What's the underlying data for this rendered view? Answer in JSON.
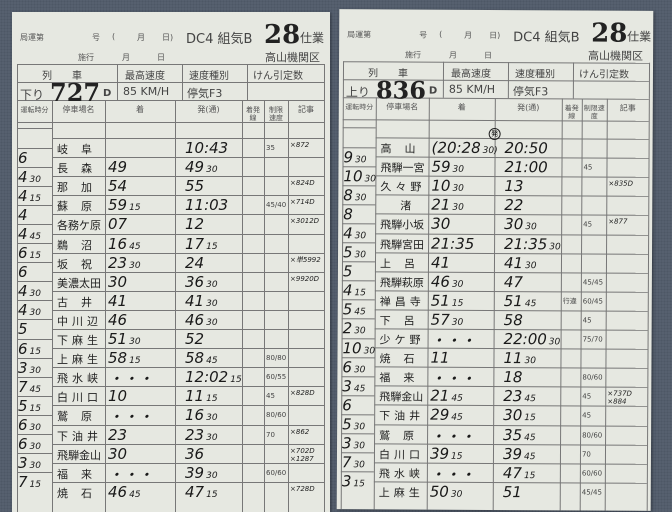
{
  "common": {
    "bureau": "局運第",
    "number": "号",
    "paren_open": "(",
    "month": "月",
    "day_close": "日)",
    "sheet_type": "DC4 組気B",
    "sheet_no": "28",
    "sheet_suffix": "仕業",
    "effective": "施行",
    "eff_month": "月",
    "eff_day": "日",
    "depot": "高山機関区",
    "col_train": "列　　車",
    "col_maxspeed": "最高速度",
    "col_speedclass": "速度種別",
    "col_load": "けん引定数",
    "col_runtime": "運転時分",
    "col_station": "停車場名",
    "col_arr": "着",
    "col_dep": "発(通)",
    "col_track": "着発線",
    "col_limit": "制限速度",
    "col_notes": "記事"
  },
  "cards": [
    {
      "direction": "下り",
      "train": "727",
      "train_suffix": "D",
      "max_speed": "85 KM/H",
      "speed_class": "停気F3",
      "rows": [
        {
          "run": "",
          "station": "岐阜",
          "arr": "",
          "dep": "10:43",
          "limit": "35",
          "note": "×872"
        },
        {
          "run": "6",
          "station": "長森",
          "arr": "49",
          "dep": "49 30",
          "limit": "",
          "note": ""
        },
        {
          "run": "4 30",
          "station": "那加",
          "arr": "54",
          "dep": "55",
          "limit": "",
          "note": "×824D"
        },
        {
          "run": "4 15",
          "station": "蘇原",
          "arr": "59 15",
          "dep": "11:03",
          "limit": "45/40",
          "note": "×714D"
        },
        {
          "run": "4",
          "station": "各務ケ原",
          "arr": "07",
          "dep": "12",
          "limit": "",
          "note": "×3012D"
        },
        {
          "run": "4 45",
          "station": "鵜沼",
          "arr": "16 45",
          "dep": "17 15",
          "limit": "",
          "note": ""
        },
        {
          "run": "6 15",
          "station": "坂祝",
          "arr": "23 30",
          "dep": "24",
          "limit": "",
          "note": "×単5992"
        },
        {
          "run": "6",
          "station": "美濃太田",
          "arr": "30",
          "dep": "36 30",
          "limit": "",
          "note": "×9920D"
        },
        {
          "run": "4 30",
          "station": "古井",
          "arr": "41",
          "dep": "41 30",
          "limit": "",
          "note": ""
        },
        {
          "run": "4 30",
          "station": "中川辺",
          "arr": "46",
          "dep": "46 30",
          "limit": "",
          "note": ""
        },
        {
          "run": "5",
          "station": "下麻生",
          "arr": "51 30",
          "dep": "52",
          "limit": "",
          "note": ""
        },
        {
          "run": "6 15",
          "station": "上麻生",
          "arr": "58 15",
          "dep": "58 45",
          "limit": "80/80",
          "note": ""
        },
        {
          "run": "3 30",
          "station": "飛水峡",
          "arr": "・・・",
          "dep": "12:02 15",
          "limit": "60/55",
          "note": ""
        },
        {
          "run": "7 45",
          "station": "白川口",
          "arr": "10",
          "dep": "11 15",
          "limit": "45",
          "note": "×828D"
        },
        {
          "run": "5 15",
          "station": "鷲原",
          "arr": "・・・",
          "dep": "16 30",
          "limit": "80/60",
          "note": ""
        },
        {
          "run": "6 30",
          "station": "下油井",
          "arr": "23",
          "dep": "23 30",
          "limit": "70",
          "note": "×862"
        },
        {
          "run": "6 30",
          "station": "飛騨金山",
          "arr": "30",
          "dep": "36",
          "limit": "",
          "note": "×702D ×1287"
        },
        {
          "run": "3 30",
          "station": "福来",
          "arr": "・・・",
          "dep": "39 30",
          "limit": "60/60",
          "note": ""
        },
        {
          "run": "7 15",
          "station": "焼石",
          "arr": "46 45",
          "dep": "47 15",
          "limit": "",
          "note": "×728D"
        }
      ]
    },
    {
      "direction": "上り",
      "train": "836",
      "train_suffix": "D",
      "max_speed": "85 KM/H",
      "speed_class": "停気F3",
      "origin_mark": "発",
      "rows": [
        {
          "run": "",
          "station": "高山",
          "arr": "(20:28 30)",
          "dep": "20:50",
          "limit": "",
          "note": ""
        },
        {
          "run": "9 30",
          "station": "飛騨一宮",
          "arr": "59 30",
          "dep": "21:00",
          "limit": "45",
          "note": ""
        },
        {
          "run": "10 30",
          "station": "久々野",
          "arr": "10 30",
          "dep": "13",
          "limit": "",
          "note": "×835D"
        },
        {
          "run": "8 30",
          "station": "渚",
          "arr": "21 30",
          "dep": "22",
          "limit": "",
          "note": ""
        },
        {
          "run": "8",
          "station": "飛騨小坂",
          "arr": "30",
          "dep": "30 30",
          "limit": "45",
          "note": "×877"
        },
        {
          "run": "4 30",
          "station": "飛騨宮田",
          "arr": "21:35",
          "dep": "21:35 30",
          "limit": "",
          "note": ""
        },
        {
          "run": "5 30",
          "station": "上呂",
          "arr": "41",
          "dep": "41 30",
          "limit": "",
          "note": ""
        },
        {
          "run": "5",
          "station": "飛騨萩原",
          "arr": "46 30",
          "dep": "47",
          "limit": "45/45",
          "note": ""
        },
        {
          "run": "4 15",
          "station": "禅昌寺",
          "arr": "51 15",
          "dep": "51 45",
          "track": "行違",
          "limit": "60/45",
          "note": ""
        },
        {
          "run": "5 45",
          "station": "下呂",
          "arr": "57 30",
          "dep": "58",
          "limit": "45",
          "note": ""
        },
        {
          "run": "2 30",
          "station": "少ケ野",
          "arr": "・・・",
          "dep": "22:00 30",
          "limit": "75/70",
          "note": ""
        },
        {
          "run": "10 30",
          "station": "焼石",
          "arr": "11",
          "dep": "11 30",
          "limit": "",
          "note": ""
        },
        {
          "run": "6 30",
          "station": "福来",
          "arr": "・・・",
          "dep": "18",
          "limit": "80/60",
          "note": ""
        },
        {
          "run": "3 45",
          "station": "飛騨金山",
          "arr": "21 45",
          "dep": "23 45",
          "limit": "45",
          "note": "×737D ×884"
        },
        {
          "run": "6",
          "station": "下油井",
          "arr": "29 45",
          "dep": "30 15",
          "limit": "45",
          "note": ""
        },
        {
          "run": "5 30",
          "station": "鷲原",
          "arr": "・・・",
          "dep": "35 45",
          "limit": "80/60",
          "note": ""
        },
        {
          "run": "3 30",
          "station": "白川口",
          "arr": "39 15",
          "dep": "39 45",
          "limit": "70",
          "note": ""
        },
        {
          "run": "7 30",
          "station": "飛水峡",
          "arr": "・・・",
          "dep": "47 15",
          "limit": "60/60",
          "note": ""
        },
        {
          "run": "3 15",
          "station": "上麻生",
          "arr": "50 30",
          "dep": "51",
          "limit": "45/45",
          "note": ""
        }
      ]
    }
  ]
}
